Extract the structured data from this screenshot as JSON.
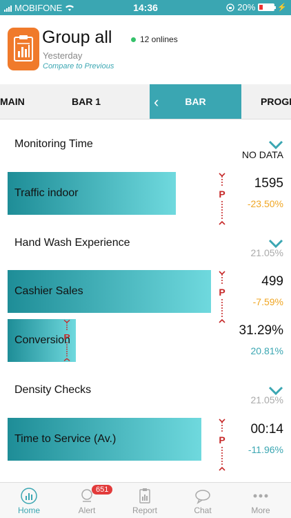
{
  "status_bar": {
    "carrier": "MOBIFONE",
    "time": "14:36",
    "battery": "20%"
  },
  "header": {
    "title": "Group all",
    "online": "12 onlines",
    "subtitle": "Yesterday",
    "compare_link": "Compare to Previous"
  },
  "tabs": [
    {
      "label": "MAIN"
    },
    {
      "label": "BAR 1"
    },
    {
      "label": "BAR"
    },
    {
      "label": "PROGR"
    }
  ],
  "sections": [
    {
      "title": "Monitoring Time",
      "right": "NO DATA",
      "items": [
        {
          "label": "Traffic indoor",
          "value": "1595",
          "delta": "-23.50%",
          "delta_color": "#f0a623",
          "fill": 0.83
        }
      ]
    },
    {
      "title": "Hand Wash Experience",
      "right": "21.05%",
      "items": [
        {
          "label": "Cashier Sales",
          "value": "499",
          "delta": "-7.59%",
          "delta_color": "#f0a623",
          "fill": 1.0
        },
        {
          "label": "Conversion",
          "value": "31.29%",
          "delta": "20.81%",
          "delta_color": "#3aa6b2",
          "fill": 0.32
        }
      ]
    },
    {
      "title": "Density Checks",
      "right": "21.05%",
      "items": [
        {
          "label": "Time to Service (Av.)",
          "value": "00:14",
          "delta": "-11.96%",
          "delta_color": "#3aa6b2",
          "fill": 0.95
        }
      ]
    }
  ],
  "bottom_nav": {
    "items": [
      {
        "label": "Home",
        "icon": "home-icon"
      },
      {
        "label": "Alert",
        "icon": "alert-icon",
        "badge": "651"
      },
      {
        "label": "Report",
        "icon": "report-icon"
      },
      {
        "label": "Chat",
        "icon": "chat-icon"
      },
      {
        "label": "More",
        "icon": "more-icon"
      }
    ]
  },
  "colors": {
    "accent": "#3aa6b2",
    "app_icon": "#f07a2b",
    "negative": "#f0a623",
    "badge": "#e23b3b"
  }
}
